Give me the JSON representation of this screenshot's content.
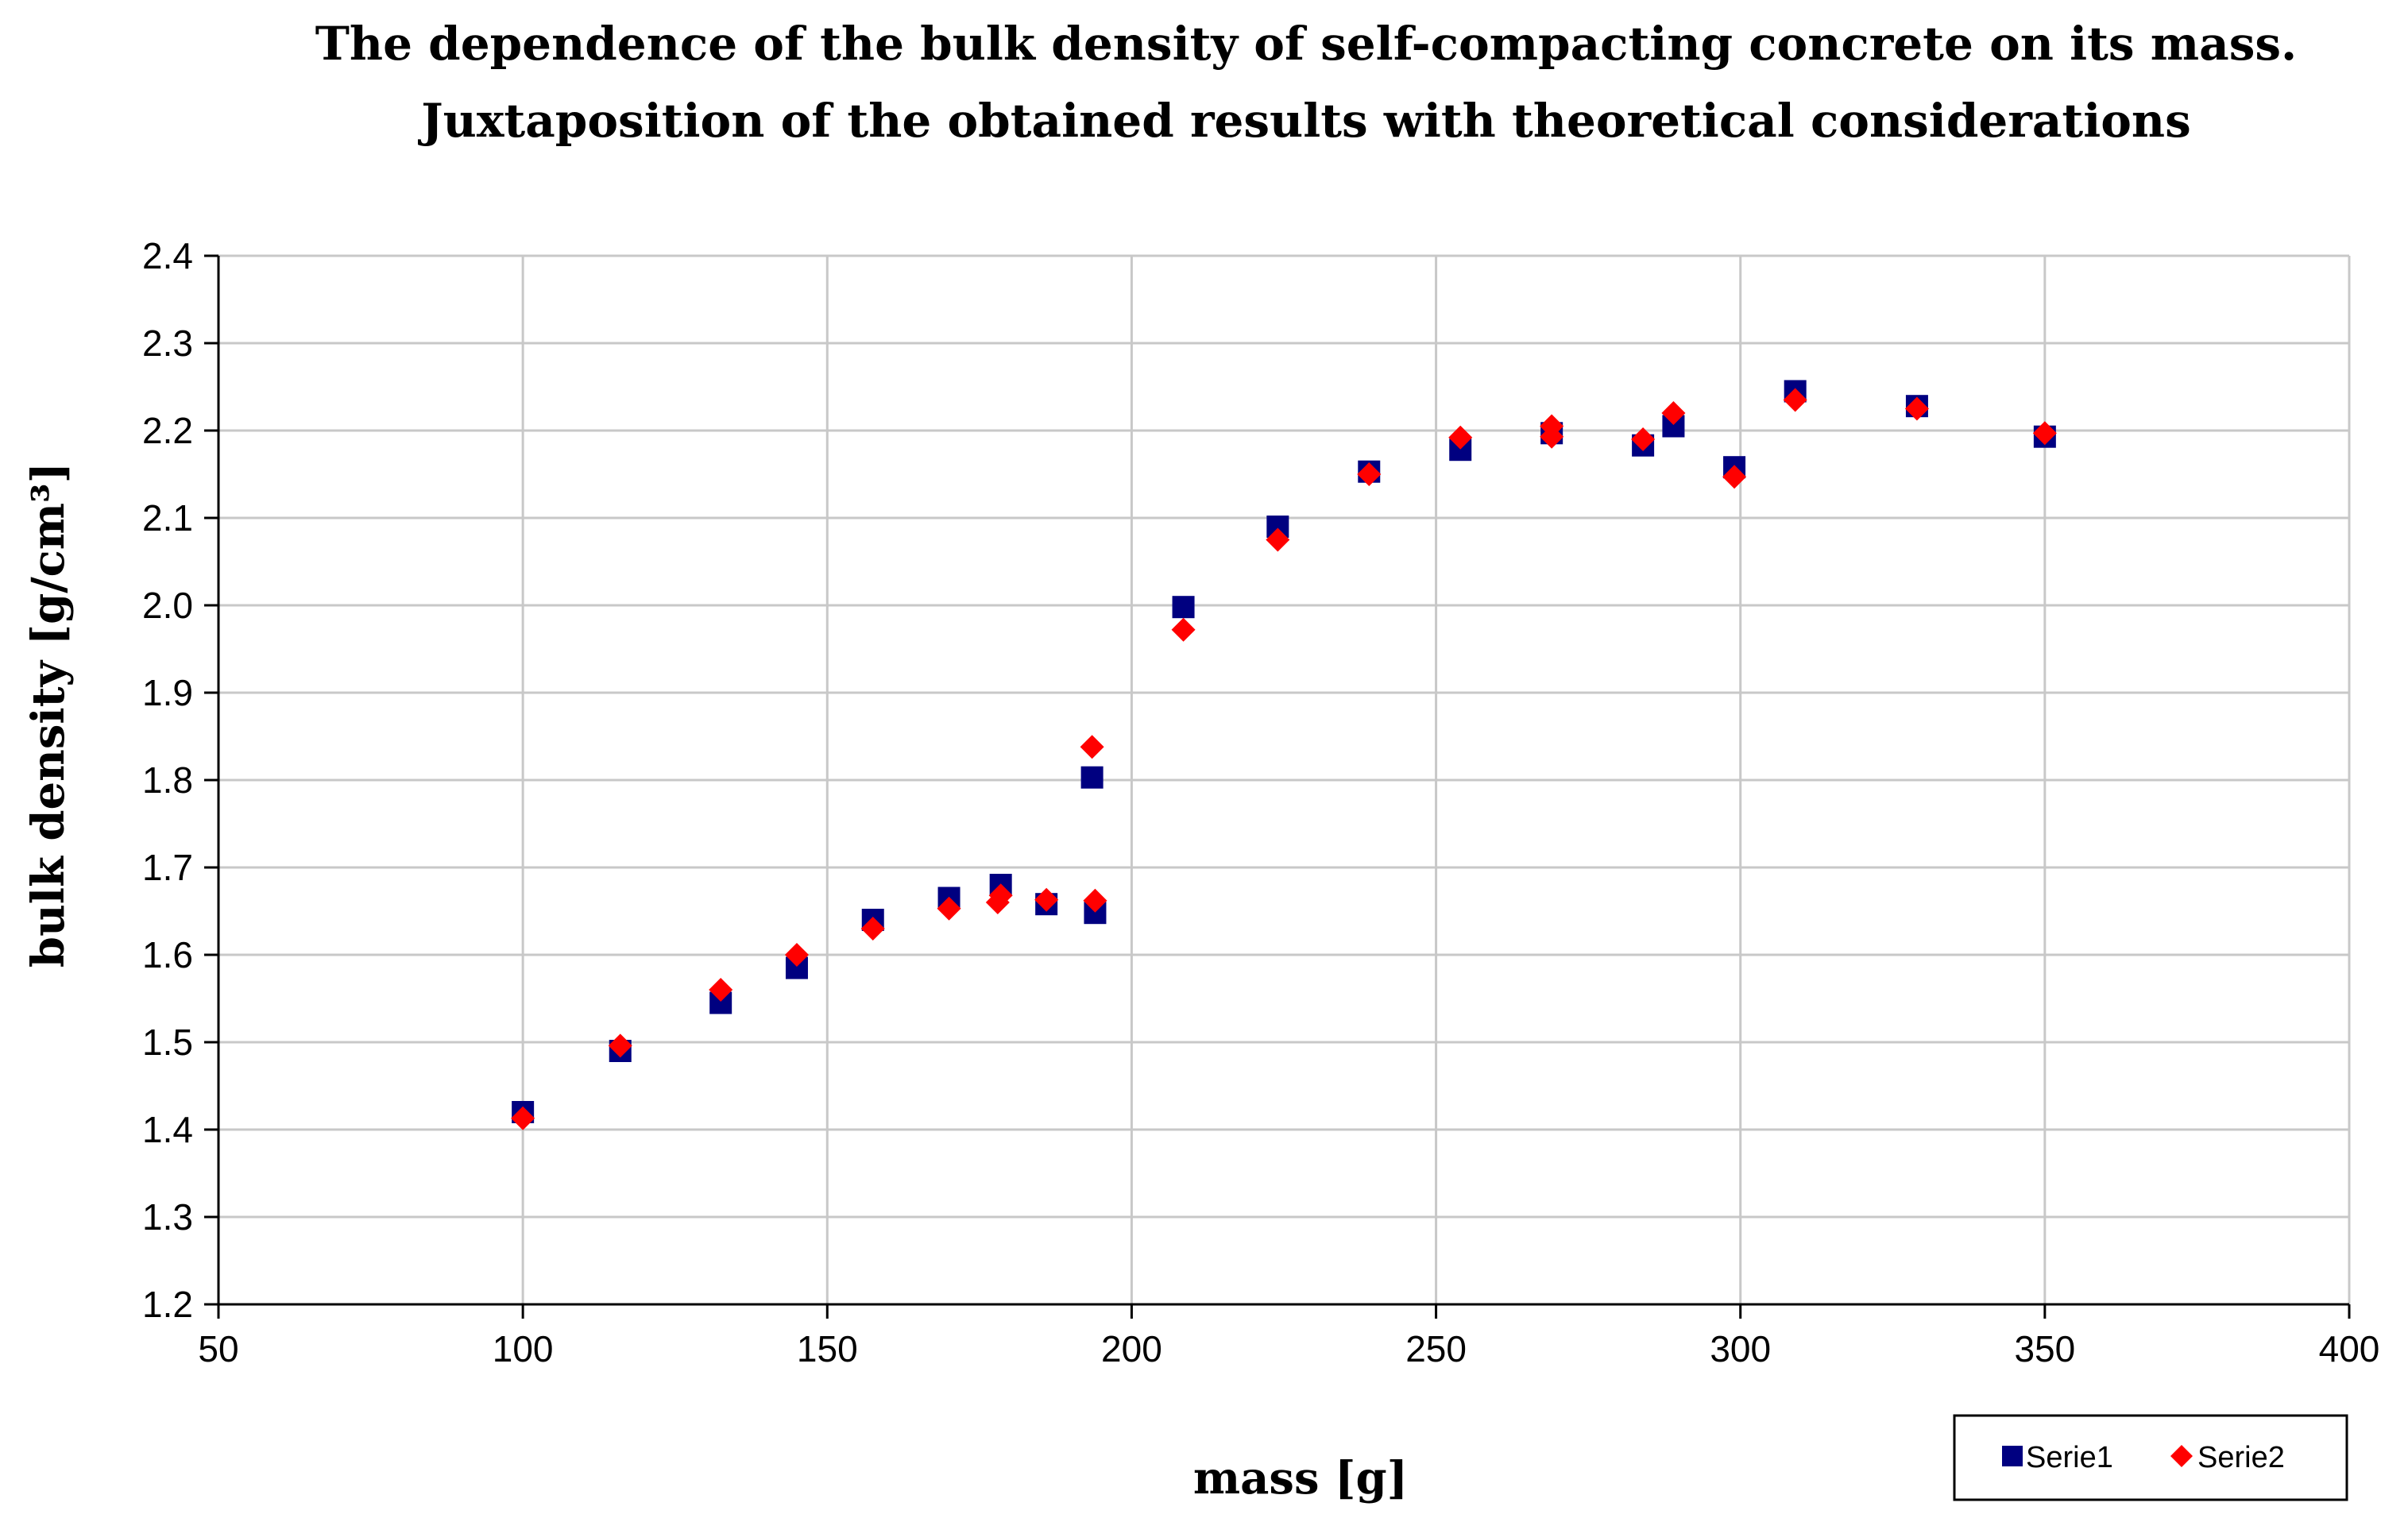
{
  "chart_data": {
    "type": "scatter",
    "title": [
      "The dependence of the bulk density of self-compacting concrete on its mass.",
      "Juxtaposition of the obtained results with theoretical considerations"
    ],
    "xlabel": "mass [g]",
    "ylabel": "bulk density [g/cm³]",
    "xlim": [
      50,
      400
    ],
    "ylim": [
      1.2,
      2.4
    ],
    "xticks": [
      50,
      100,
      150,
      200,
      250,
      300,
      350,
      400
    ],
    "yticks": [
      1.2,
      1.3,
      1.4,
      1.5,
      1.6,
      1.7,
      1.8,
      1.9,
      2.0,
      2.1,
      2.2,
      2.3,
      2.4
    ],
    "xtick_labels": [
      "50",
      "100",
      "150",
      "200",
      "250",
      "300",
      "350",
      "400"
    ],
    "ytick_labels": [
      "1.2",
      "1.3",
      "1.4",
      "1.5",
      "1.6",
      "1.7",
      "1.8",
      "1.9",
      "2.0",
      "2.1",
      "2.2",
      "2.3",
      "2.4"
    ],
    "grid": true,
    "legend_position": "bottom-right",
    "series": [
      {
        "name": "Serie1",
        "marker": "square",
        "color": "#000080",
        "points": [
          [
            100,
            1.42
          ],
          [
            116,
            1.49
          ],
          [
            132.5,
            1.545
          ],
          [
            145,
            1.585
          ],
          [
            157.5,
            1.64
          ],
          [
            170,
            1.665
          ],
          [
            178.5,
            1.68
          ],
          [
            186,
            1.658
          ],
          [
            194,
            1.648
          ],
          [
            193.5,
            1.803
          ],
          [
            208.5,
            1.998
          ],
          [
            224,
            2.09
          ],
          [
            239,
            2.153
          ],
          [
            254,
            2.178
          ],
          [
            269,
            2.197
          ],
          [
            284,
            2.183
          ],
          [
            289,
            2.205
          ],
          [
            299,
            2.158
          ],
          [
            309,
            2.245
          ],
          [
            329,
            2.228
          ],
          [
            350,
            2.193
          ]
        ]
      },
      {
        "name": "Serie2",
        "marker": "diamond",
        "color": "#ff0000",
        "points": [
          [
            100,
            1.413
          ],
          [
            116,
            1.496
          ],
          [
            132.5,
            1.56
          ],
          [
            145,
            1.6
          ],
          [
            157.5,
            1.63
          ],
          [
            170,
            1.653
          ],
          [
            178,
            1.66
          ],
          [
            178.5,
            1.668
          ],
          [
            186,
            1.663
          ],
          [
            194,
            1.662
          ],
          [
            193.5,
            1.838
          ],
          [
            208.5,
            1.972
          ],
          [
            224,
            2.075
          ],
          [
            239,
            2.15
          ],
          [
            254,
            2.192
          ],
          [
            269,
            2.205
          ],
          [
            269,
            2.193
          ],
          [
            284,
            2.19
          ],
          [
            289,
            2.22
          ],
          [
            299,
            2.147
          ],
          [
            309,
            2.235
          ],
          [
            329,
            2.225
          ],
          [
            350,
            2.197
          ]
        ]
      }
    ]
  }
}
